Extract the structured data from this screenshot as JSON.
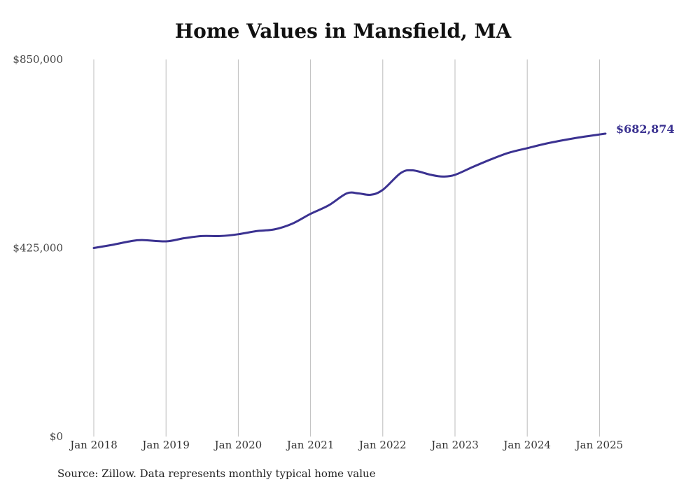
{
  "chart_data": {
    "type": "line",
    "title": "Home Values in Mansfield, MA",
    "xlabel": "",
    "ylabel": "",
    "ylim": [
      0,
      850000
    ],
    "y_ticks": [
      "$0",
      "$425,000",
      "$850,000"
    ],
    "y_tick_values": [
      0,
      425000,
      850000
    ],
    "x_ticks": [
      "Jan 2018",
      "Jan 2019",
      "Jan 2020",
      "Jan 2021",
      "Jan 2022",
      "Jan 2023",
      "Jan 2024",
      "Jan 2025"
    ],
    "x_tick_values": [
      "2018-01",
      "2019-01",
      "2020-01",
      "2021-01",
      "2022-01",
      "2023-01",
      "2024-01",
      "2025-01"
    ],
    "grid": "vertical",
    "series": [
      {
        "color": "#3b3291",
        "x": [
          "2018-01",
          "2018-04",
          "2018-07",
          "2018-09",
          "2019-01",
          "2019-04",
          "2019-07",
          "2019-10",
          "2020-01",
          "2020-04",
          "2020-07",
          "2020-10",
          "2021-01",
          "2021-04",
          "2021-07",
          "2021-09",
          "2021-11",
          "2022-01",
          "2022-04",
          "2022-06",
          "2022-09",
          "2022-11",
          "2023-01",
          "2023-04",
          "2023-07",
          "2023-10",
          "2024-01",
          "2024-04",
          "2024-07",
          "2024-10",
          "2025-01",
          "2025-02"
        ],
        "values": [
          425000,
          432000,
          440000,
          443000,
          440000,
          447000,
          452000,
          452000,
          456000,
          463000,
          467000,
          480000,
          502000,
          521000,
          548000,
          548000,
          545000,
          556000,
          594000,
          600000,
          590000,
          586000,
          590000,
          608000,
          625000,
          640000,
          650000,
          660000,
          668000,
          675000,
          681000,
          682874
        ]
      }
    ],
    "end_label": "$682,874"
  },
  "source": "Source: Zillow. Data represents monthly typical home value"
}
